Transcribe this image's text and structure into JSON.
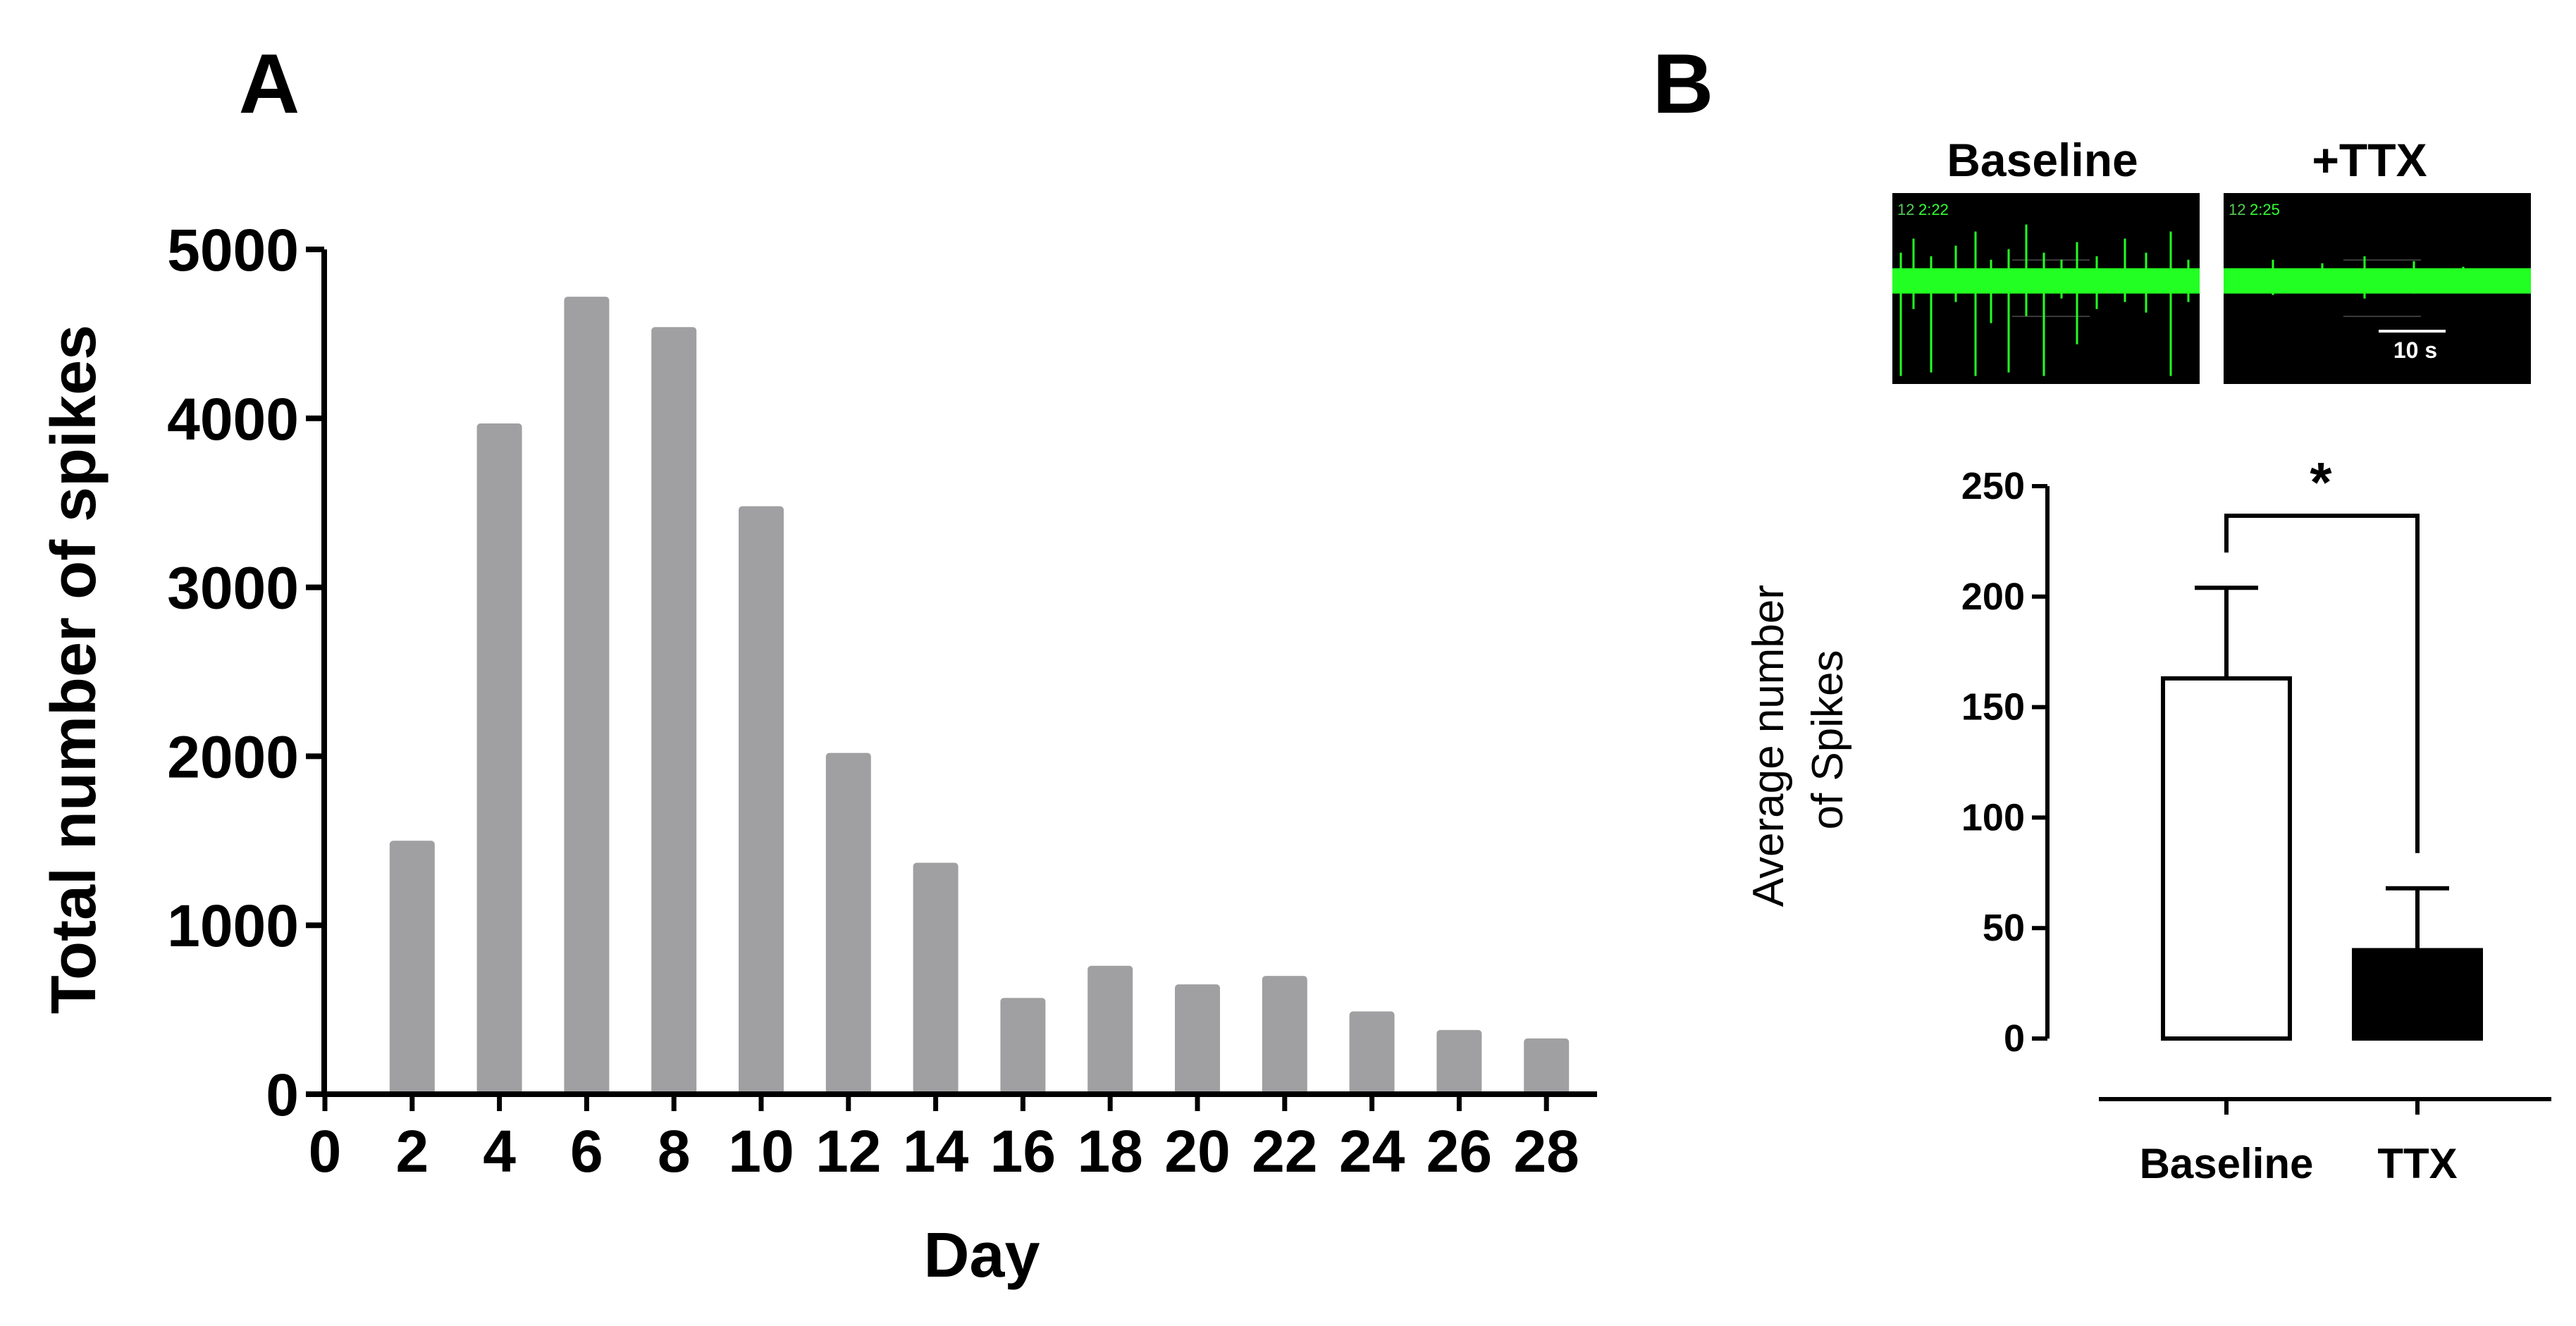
{
  "chart_data": [
    {
      "panel_label": "A",
      "type": "bar",
      "title": "",
      "xlabel": "Day",
      "ylabel": "Total number of spikes",
      "ylim": [
        0,
        5000
      ],
      "xlim": [
        0,
        29
      ],
      "yticks": [
        "0",
        "1000",
        "2000",
        "3000",
        "4000",
        "5000"
      ],
      "xticks": [
        "0",
        "2",
        "4",
        "6",
        "8",
        "10",
        "12",
        "14",
        "16",
        "18",
        "20",
        "22",
        "24",
        "26",
        "28"
      ],
      "categories": [
        2,
        4,
        6,
        8,
        10,
        12,
        14,
        16,
        18,
        20,
        22,
        24,
        26,
        28
      ],
      "values": [
        1500,
        3970,
        4720,
        4540,
        3480,
        2020,
        1370,
        570,
        760,
        650,
        700,
        490,
        380,
        330
      ],
      "colors": {
        "bar": "#a0a0a2",
        "axis": "#000000"
      }
    },
    {
      "panel_label": "B",
      "type": "bar",
      "traces": [
        {
          "title": "Baseline",
          "channel": "12",
          "time": "2:22"
        },
        {
          "title": "+TTX",
          "channel": "12",
          "time": "2:25",
          "scalebar": "10 s"
        }
      ],
      "ylabel": "Average number of Spikes",
      "ylabel_lines": [
        "Average number",
        "of Spikes"
      ],
      "ylim": [
        0,
        250
      ],
      "yticks": [
        "0",
        "50",
        "100",
        "150",
        "200",
        "250"
      ],
      "categories": [
        "Baseline",
        "TTX"
      ],
      "values": [
        163,
        40
      ],
      "errors": [
        41,
        28
      ],
      "significance": "*",
      "colors": {
        "baseline_fill": "#ffffff",
        "ttx_fill": "#000000",
        "trace_bg": "#000000",
        "trace_signal": "#22ff22"
      }
    }
  ]
}
